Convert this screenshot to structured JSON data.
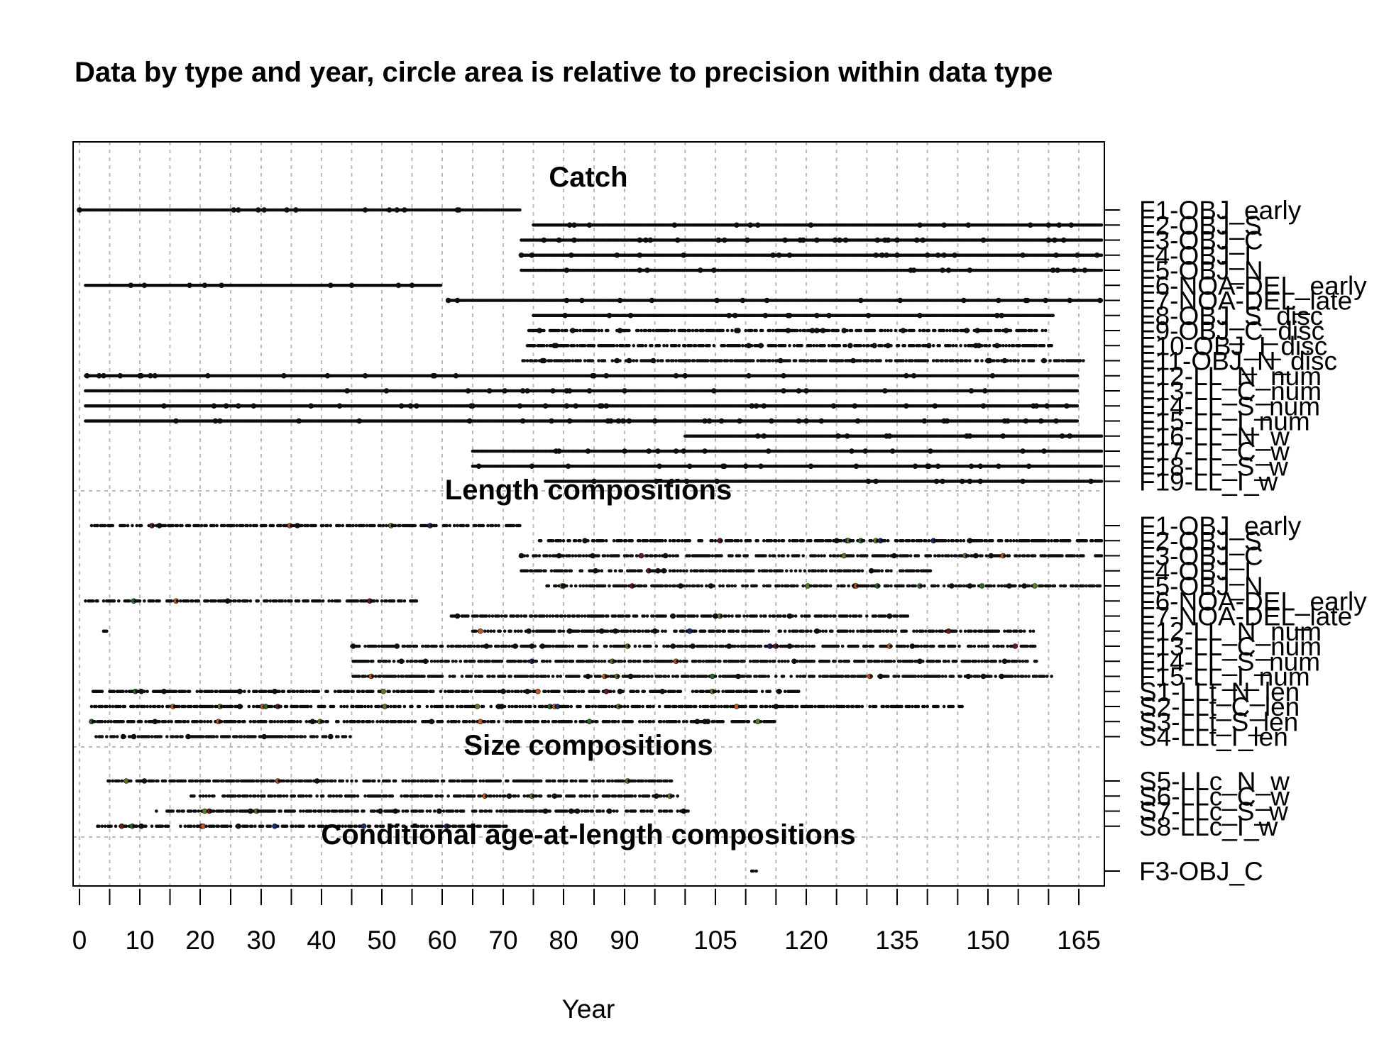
{
  "chart_data": {
    "type": "scatter",
    "title": "Data by type and year, circle area is relative to precision within data type",
    "xlabel": "Year",
    "ylabel": "",
    "xlim": [
      -1,
      169
    ],
    "x_ticks": [
      0,
      10,
      20,
      30,
      40,
      50,
      60,
      70,
      80,
      90,
      105,
      120,
      135,
      150,
      165
    ],
    "grid": true,
    "sections": [
      {
        "name": "Catch",
        "rows": [
          {
            "label": "F1-OBJ_early",
            "ranges": [
              [
                0,
                72
              ]
            ]
          },
          {
            "label": "F2-OBJ_S",
            "ranges": [
              [
                75,
                168
              ]
            ]
          },
          {
            "label": "F3-OBJ_C",
            "ranges": [
              [
                73,
                168
              ]
            ]
          },
          {
            "label": "F4-OBJ_I",
            "ranges": [
              [
                73,
                168
              ]
            ]
          },
          {
            "label": "F5-OBJ_N",
            "ranges": [
              [
                73,
                168
              ]
            ]
          },
          {
            "label": "F6-NOA-DEL_early",
            "ranges": [
              [
                1,
                59
              ]
            ]
          },
          {
            "label": "F7-NOA-DEL_late",
            "ranges": [
              [
                61,
                168
              ]
            ]
          },
          {
            "label": "F8-OBJ_S_disc",
            "ranges": [
              [
                75,
                160
              ]
            ]
          },
          {
            "label": "F9-OBJ_C_disc",
            "ranges": [
              [
                74,
                160
              ]
            ]
          },
          {
            "label": "F10-OBJ_I_disc",
            "ranges": [
              [
                74,
                160
              ]
            ]
          },
          {
            "label": "F11-OBJ_N_disc",
            "ranges": [
              [
                73,
                165
              ]
            ]
          },
          {
            "label": "F12-LL_N_num",
            "ranges": [
              [
                1,
                164
              ]
            ]
          },
          {
            "label": "F13-LL_C_num",
            "ranges": [
              [
                1,
                164
              ]
            ]
          },
          {
            "label": "F14-LL_S_num",
            "ranges": [
              [
                1,
                164
              ]
            ]
          },
          {
            "label": "F15-LL_I_num",
            "ranges": [
              [
                1,
                164
              ]
            ]
          },
          {
            "label": "F16-LL_N_w",
            "ranges": [
              [
                100,
                168
              ]
            ]
          },
          {
            "label": "F17-LL_C_w",
            "ranges": [
              [
                65,
                168
              ]
            ]
          },
          {
            "label": "F18-LL_S_w",
            "ranges": [
              [
                65,
                168
              ]
            ]
          },
          {
            "label": "F19-LL_I_w",
            "ranges": [
              [
                77,
                168
              ]
            ]
          }
        ]
      },
      {
        "name": "Length compositions",
        "rows": [
          {
            "label": "F1-OBJ_early",
            "ranges": [
              [
                2,
                72
              ]
            ]
          },
          {
            "label": "F2-OBJ_S",
            "ranges": [
              [
                76,
                168
              ]
            ]
          },
          {
            "label": "F3-OBJ_C",
            "ranges": [
              [
                73,
                168
              ]
            ]
          },
          {
            "label": "F4-OBJ_I",
            "ranges": [
              [
                73,
                140
              ]
            ]
          },
          {
            "label": "F5-OBJ_N",
            "ranges": [
              [
                77,
                168
              ]
            ]
          },
          {
            "label": "F6-NOA-DEL_early",
            "ranges": [
              [
                1,
                55
              ]
            ]
          },
          {
            "label": "F7-NOA-DEL_late",
            "ranges": [
              [
                61,
                136
              ]
            ]
          },
          {
            "label": "F12-LL_N_num",
            "ranges": [
              [
                4,
                4
              ],
              [
                65,
                157
              ]
            ]
          },
          {
            "label": "F13-LL_C_num",
            "ranges": [
              [
                45,
                157
              ]
            ]
          },
          {
            "label": "F14-LL_S_num",
            "ranges": [
              [
                45,
                158
              ]
            ]
          },
          {
            "label": "F15-LL_I_num",
            "ranges": [
              [
                45,
                160
              ]
            ]
          },
          {
            "label": "S1-LLt_N_len",
            "ranges": [
              [
                2,
                118
              ]
            ]
          },
          {
            "label": "S2-LLt_C_len",
            "ranges": [
              [
                2,
                145
              ]
            ]
          },
          {
            "label": "S3-LLt_S_len",
            "ranges": [
              [
                2,
                114
              ]
            ]
          },
          {
            "label": "S4-LLt_I_len",
            "ranges": [
              [
                2,
                44
              ]
            ]
          }
        ]
      },
      {
        "name": "Size compositions",
        "rows": [
          {
            "label": "S5-LLc_N_w",
            "ranges": [
              [
                4,
                97
              ]
            ]
          },
          {
            "label": "S6-LLc_C_w",
            "ranges": [
              [
                18,
                98
              ]
            ]
          },
          {
            "label": "S7-LLc_S_w",
            "ranges": [
              [
                12,
                100
              ]
            ]
          },
          {
            "label": "S8-LLc_I_w",
            "ranges": [
              [
                3,
                70
              ]
            ]
          }
        ]
      },
      {
        "name": "Conditional age-at-length compositions",
        "rows": [
          {
            "label": "F3-OBJ_C",
            "ranges": [
              [
                111,
                111
              ]
            ]
          }
        ]
      }
    ]
  }
}
